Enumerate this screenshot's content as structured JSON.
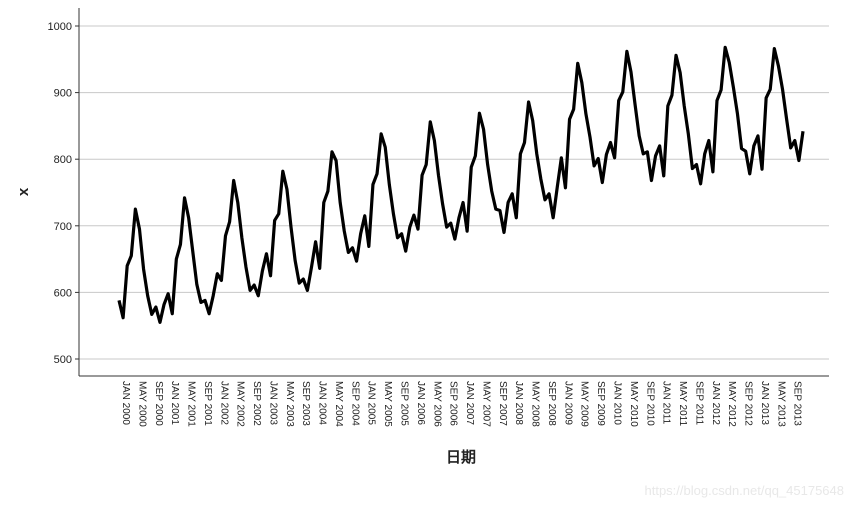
{
  "chart_data": {
    "type": "line",
    "xlabel": "日期",
    "ylabel": "x",
    "ylim": [
      480,
      1030
    ],
    "yticks": [
      500,
      600,
      700,
      800,
      900,
      1000
    ],
    "grid": "horizontal",
    "line_color": "#000000",
    "grid_color": "#c8c8c8",
    "x_start": "JAN 2000",
    "x_end": "DEC 2013",
    "xtick_labels": [
      "JAN 2000",
      "MAY 2000",
      "SEP 2000",
      "JAN 2001",
      "MAY 2001",
      "SEP 2001",
      "JAN 2002",
      "MAY 2002",
      "SEP 2002",
      "JAN 2003",
      "MAY 2003",
      "SEP 2003",
      "JAN 2004",
      "MAY 2004",
      "SEP 2004",
      "JAN 2005",
      "MAY 2005",
      "SEP 2005",
      "JAN 2006",
      "MAY 2006",
      "SEP 2006",
      "JAN 2007",
      "MAY 2007",
      "SEP 2007",
      "JAN 2008",
      "MAY 2008",
      "SEP 2008",
      "JAN 2009",
      "MAY 2009",
      "SEP 2009",
      "JAN 2010",
      "MAY 2010",
      "SEP 2010",
      "JAN 2011",
      "MAY 2011",
      "SEP 2011",
      "JAN 2012",
      "MAY 2012",
      "SEP 2012",
      "JAN 2013",
      "MAY 2013",
      "SEP 2013"
    ],
    "series": [
      {
        "values": [
          588,
          562,
          640,
          655,
          725,
          695,
          635,
          595,
          567,
          578,
          555,
          582,
          598,
          568,
          650,
          672,
          742,
          712,
          662,
          612,
          585,
          588,
          568,
          595,
          628,
          618,
          685,
          706,
          768,
          735,
          682,
          638,
          603,
          611,
          595,
          632,
          658,
          625,
          708,
          718,
          782,
          755,
          698,
          648,
          614,
          620,
          603,
          638,
          676,
          636,
          735,
          752,
          811,
          798,
          735,
          692,
          660,
          667,
          647,
          688,
          715,
          669,
          762,
          778,
          838,
          818,
          762,
          718,
          682,
          688,
          662,
          698,
          716,
          695,
          776,
          792,
          856,
          828,
          776,
          733,
          698,
          704,
          680,
          712,
          735,
          692,
          788,
          805,
          869,
          845,
          792,
          752,
          725,
          723,
          690,
          735,
          748,
          712,
          808,
          825,
          886,
          858,
          808,
          770,
          739,
          748,
          712,
          758,
          802,
          757,
          860,
          875,
          944,
          915,
          868,
          833,
          790,
          801,
          765,
          807,
          825,
          802,
          888,
          901,
          962,
          931,
          882,
          835,
          808,
          811,
          768,
          805,
          820,
          775,
          880,
          896,
          956,
          930,
          880,
          838,
          786,
          792,
          763,
          808,
          828,
          781,
          888,
          904,
          968,
          945,
          908,
          868,
          816,
          812,
          778,
          820,
          835,
          785,
          892,
          905,
          966,
          940,
          905,
          860,
          817,
          828,
          798,
          842
        ]
      }
    ]
  },
  "watermark": "https://blog.csdn.net/qq_45175648"
}
